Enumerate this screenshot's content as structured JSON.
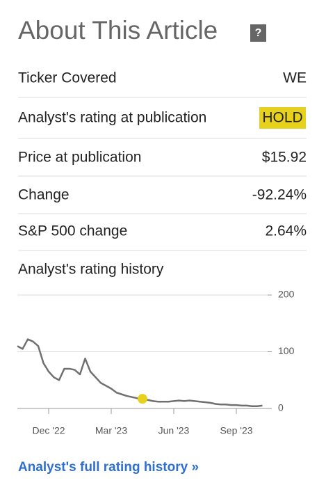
{
  "header": {
    "title": "About This Article",
    "help": "?"
  },
  "rows": [
    {
      "label": "Ticker Covered",
      "value": "WE"
    },
    {
      "label": "Analyst's rating at publication",
      "value": "HOLD"
    },
    {
      "label": "Price at publication",
      "value": "$15.92"
    },
    {
      "label": "Change",
      "value": "-92.24%"
    },
    {
      "label": "S&P 500 change",
      "value": "2.64%"
    }
  ],
  "chart_data": {
    "type": "line",
    "title": "Analyst's rating history",
    "categories": [
      null,
      null,
      null,
      null,
      null,
      null,
      "Dec '22",
      null,
      null,
      null,
      null,
      null,
      null,
      null,
      null,
      null,
      null,
      null,
      "Mar '23",
      null,
      null,
      null,
      null,
      null,
      null,
      null,
      null,
      null,
      null,
      null,
      "Jun '23",
      null,
      null,
      null,
      null,
      null,
      null,
      null,
      null,
      null,
      null,
      null,
      "Sep '23",
      null,
      null,
      null,
      null,
      null
    ],
    "values": [
      110,
      105,
      122,
      118,
      110,
      80,
      65,
      55,
      50,
      70,
      70,
      68,
      60,
      88,
      65,
      55,
      45,
      40,
      35,
      28,
      25,
      22,
      20,
      18,
      17,
      15,
      13,
      12,
      12,
      12,
      13,
      14,
      13,
      14,
      13,
      12,
      11,
      10,
      8,
      7,
      7,
      6,
      6,
      5,
      5,
      4,
      4,
      5
    ],
    "color": "#707070",
    "highlight_index": 24,
    "highlight_color": "#e6d21c",
    "ylim": [
      0,
      200
    ],
    "yticks": [
      0,
      100,
      200
    ],
    "grid": true
  },
  "footer": {
    "link": "Analyst's full rating history »"
  }
}
